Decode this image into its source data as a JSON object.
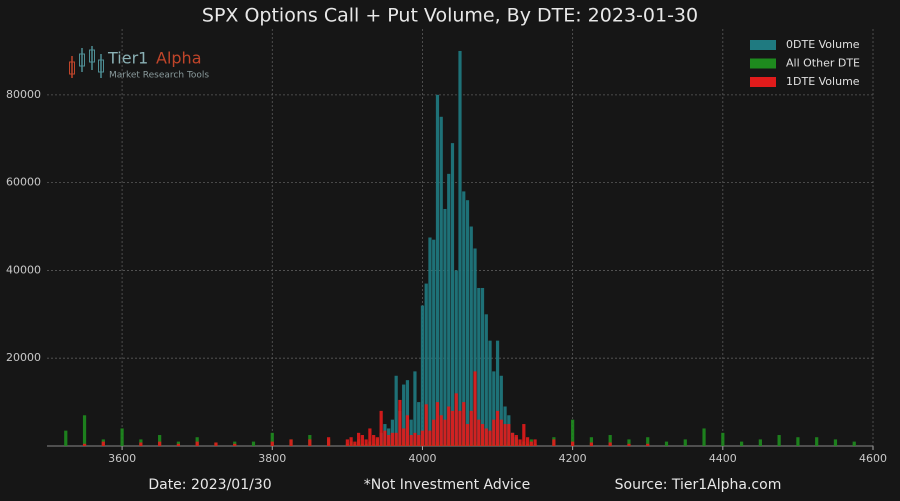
{
  "chart_data": {
    "type": "bar",
    "title": "SPX Options Call + Put Volume, By DTE: 2023-01-30",
    "x": [
      3525,
      3550,
      3575,
      3600,
      3625,
      3650,
      3675,
      3700,
      3725,
      3750,
      3775,
      3800,
      3825,
      3850,
      3875,
      3900,
      3905,
      3910,
      3915,
      3920,
      3925,
      3930,
      3935,
      3940,
      3945,
      3950,
      3955,
      3960,
      3965,
      3970,
      3975,
      3980,
      3985,
      3990,
      3995,
      4000,
      4005,
      4010,
      4015,
      4020,
      4025,
      4030,
      4035,
      4040,
      4045,
      4050,
      4055,
      4060,
      4065,
      4070,
      4075,
      4080,
      4085,
      4090,
      4095,
      4100,
      4105,
      4110,
      4115,
      4120,
      4125,
      4130,
      4135,
      4140,
      4145,
      4150,
      4175,
      4200,
      4225,
      4250,
      4275,
      4300,
      4325,
      4350,
      4375,
      4400,
      4425,
      4450,
      4475,
      4500,
      4525,
      4550,
      4575
    ],
    "series": [
      {
        "name": "0DTE Volume",
        "color": "#1f7a80",
        "values": [
          0,
          0,
          0,
          0,
          0,
          0,
          0,
          0,
          0,
          0,
          0,
          0,
          0,
          0,
          0,
          0,
          0,
          0,
          0,
          0,
          0,
          0,
          0,
          0,
          3000,
          5000,
          4000,
          6000,
          16000,
          8000,
          14000,
          15000,
          6000,
          17000,
          10000,
          32000,
          37000,
          47500,
          47000,
          80000,
          75000,
          54000,
          62000,
          69000,
          40000,
          90000,
          58000,
          56000,
          50000,
          45000,
          36000,
          36000,
          30000,
          24000,
          17000,
          24000,
          16000,
          9000,
          7000,
          3000,
          2000,
          0,
          0,
          0,
          0,
          0,
          0,
          0,
          0,
          0,
          0,
          0,
          0,
          0,
          0,
          0,
          0,
          0,
          0,
          0,
          0,
          0,
          0
        ]
      },
      {
        "name": "All Other DTE",
        "color": "#1e8a1e",
        "values": [
          3500,
          7000,
          1500,
          4000,
          1500,
          2500,
          1000,
          2000,
          800,
          1000,
          1000,
          3000,
          1500,
          2500,
          1500,
          500,
          1000,
          500,
          1500,
          500,
          500,
          1000,
          500,
          1500,
          500,
          1000,
          500,
          500,
          1500,
          500,
          1000,
          500,
          500,
          1000,
          500,
          1500,
          500,
          1000,
          500,
          1000,
          500,
          500,
          1500,
          500,
          1000,
          500,
          1000,
          500,
          500,
          1000,
          500,
          1500,
          500,
          1000,
          500,
          500,
          1500,
          500,
          1000,
          500,
          1500,
          500,
          1000,
          500,
          1500,
          500,
          2000,
          6000,
          2000,
          2500,
          1500,
          2000,
          1000,
          1500,
          4000,
          3000,
          1000,
          1500,
          2500,
          2000,
          2000,
          1500,
          1000
        ]
      },
      {
        "name": "1DTE Volume",
        "color": "#e01b1b",
        "values": [
          0,
          500,
          1000,
          0,
          800,
          1000,
          500,
          1000,
          800,
          500,
          0,
          1000,
          1500,
          1500,
          2000,
          1500,
          2000,
          1000,
          3000,
          2500,
          1500,
          4000,
          2500,
          2000,
          8000,
          3500,
          2500,
          3000,
          3000,
          10500,
          4000,
          7000,
          2500,
          3000,
          2500,
          3500,
          9500,
          3500,
          6000,
          10000,
          7000,
          6000,
          9000,
          8000,
          12000,
          8000,
          10000,
          5000,
          8000,
          17000,
          6000,
          5000,
          4000,
          3500,
          6000,
          8000,
          6000,
          5000,
          5000,
          3000,
          2500,
          1500,
          5000,
          2000,
          1000,
          1500,
          1500,
          1000,
          800,
          800,
          500,
          500,
          0,
          0,
          0,
          0,
          0,
          0,
          0,
          0,
          0,
          0,
          0
        ]
      }
    ],
    "xlim": [
      3500,
      4600
    ],
    "xticks": [
      3600,
      3800,
      4000,
      4200,
      4400,
      4600
    ],
    "ylim": [
      0,
      95000
    ],
    "yticks": [
      20000,
      40000,
      60000,
      80000
    ],
    "grid": true,
    "legend": "top-right"
  },
  "watermark": {
    "brand": "Tier1",
    "brand_accent": "Alpha",
    "tagline": "Market  Research Tools"
  },
  "footer": {
    "date": "Date: 2023/01/30",
    "disclaimer": "*Not Investment Advice",
    "source": "Source: Tier1Alpha.com"
  }
}
